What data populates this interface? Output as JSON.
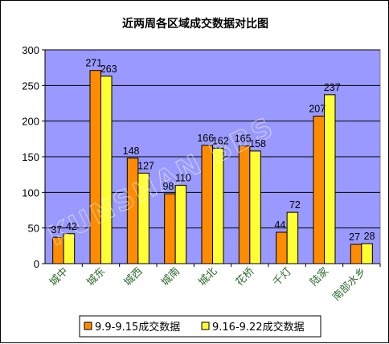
{
  "chart_data": {
    "type": "bar",
    "title": "近两周各区域成交数据对比图",
    "xlabel": "",
    "ylabel": "",
    "ylim": [
      0,
      300
    ],
    "yticks": [
      0,
      50,
      100,
      150,
      200,
      250,
      300
    ],
    "categories": [
      "城中",
      "城东",
      "城西",
      "城南",
      "城北",
      "花桥",
      "千灯",
      "陆家",
      "南部水乡"
    ],
    "series": [
      {
        "name": "9.9-9.15成交数据",
        "color": "#ff8c00",
        "values": [
          37,
          271,
          148,
          98,
          166,
          165,
          44,
          207,
          27
        ]
      },
      {
        "name": "9.16-9.22成交数据",
        "color": "#ffff33",
        "values": [
          42,
          263,
          127,
          110,
          162,
          158,
          72,
          237,
          28
        ]
      }
    ],
    "plot_background": "#9999ff",
    "grid": true,
    "legend": "bottom",
    "watermark": "KUNSHAN BBS"
  }
}
